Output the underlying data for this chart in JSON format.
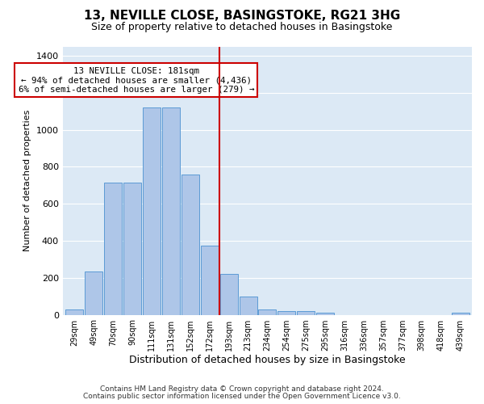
{
  "title": "13, NEVILLE CLOSE, BASINGSTOKE, RG21 3HG",
  "subtitle": "Size of property relative to detached houses in Basingstoke",
  "xlabel": "Distribution of detached houses by size in Basingstoke",
  "ylabel": "Number of detached properties",
  "bar_labels": [
    "29sqm",
    "49sqm",
    "70sqm",
    "90sqm",
    "111sqm",
    "131sqm",
    "152sqm",
    "172sqm",
    "193sqm",
    "213sqm",
    "234sqm",
    "254sqm",
    "275sqm",
    "295sqm",
    "316sqm",
    "336sqm",
    "357sqm",
    "377sqm",
    "398sqm",
    "418sqm",
    "439sqm"
  ],
  "bar_heights": [
    30,
    235,
    715,
    715,
    1120,
    1120,
    760,
    375,
    220,
    100,
    30,
    22,
    20,
    12,
    0,
    0,
    0,
    0,
    0,
    0,
    12
  ],
  "bar_color": "#aec6e8",
  "bar_edge_color": "#5b9bd5",
  "vline_color": "#cc0000",
  "annotation_text": "13 NEVILLE CLOSE: 181sqm\n← 94% of detached houses are smaller (4,436)\n6% of semi-detached houses are larger (279) →",
  "ylim": [
    0,
    1450
  ],
  "yticks": [
    0,
    200,
    400,
    600,
    800,
    1000,
    1200,
    1400
  ],
  "bg_color": "#dce9f5",
  "footer1": "Contains HM Land Registry data © Crown copyright and database right 2024.",
  "footer2": "Contains public sector information licensed under the Open Government Licence v3.0."
}
